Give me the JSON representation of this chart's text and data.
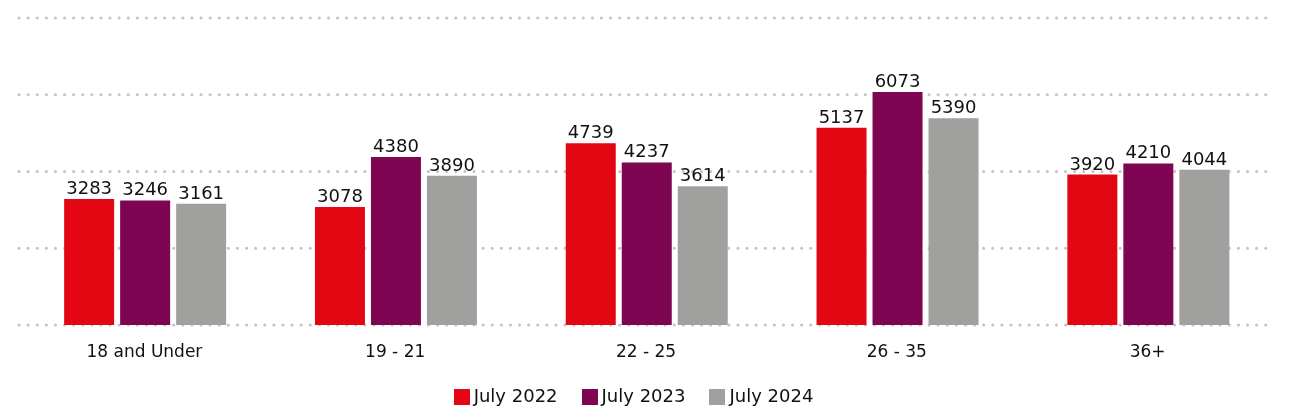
{
  "chart_data": {
    "type": "bar",
    "categories": [
      "18 and Under",
      "19 - 21",
      "22 - 25",
      "26 - 35",
      "36+"
    ],
    "series": [
      {
        "name": "July 2022",
        "color": "#e30613",
        "values": [
          3283,
          3078,
          4739,
          5137,
          3920
        ]
      },
      {
        "name": "July 2023",
        "color": "#7d0552",
        "values": [
          3246,
          4380,
          4237,
          6073,
          4210
        ]
      },
      {
        "name": "July 2024",
        "color": "#a0a09f",
        "values": [
          3161,
          3890,
          3614,
          5390,
          4044
        ]
      }
    ],
    "data_labels": true,
    "grid": "y",
    "legend": "bottom",
    "tick_labels": "x"
  }
}
